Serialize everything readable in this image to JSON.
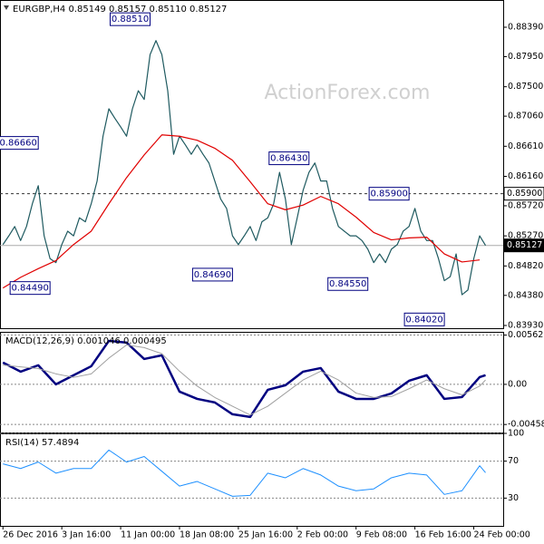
{
  "chart_data": [
    {
      "type": "line",
      "title": "EURGBP,H4  0.85149 0.85157 0.85110 0.85127",
      "watermark": "ActionForex.com",
      "xlim": [
        -0.5,
        85
      ],
      "ylim": [
        0.83889,
        0.88797
      ],
      "yticks": [
        {
          "value": 0.8839,
          "label": "0.88390"
        },
        {
          "value": 0.8795,
          "label": "0.87950"
        },
        {
          "value": 0.875,
          "label": "0.87500"
        },
        {
          "value": 0.8706,
          "label": "0.87060"
        },
        {
          "value": 0.8661,
          "label": "0.86610"
        },
        {
          "value": 0.8616,
          "label": "0.86160"
        },
        {
          "value": 0.8572,
          "label": "0.85720"
        },
        {
          "value": 0.8527,
          "label": "0.85270"
        },
        {
          "value": 0.8482,
          "label": "0.84820"
        },
        {
          "value": 0.8438,
          "label": "0.84380"
        },
        {
          "value": 0.8393,
          "label": "0.83930"
        }
      ],
      "grid": false,
      "series": [
        {
          "name": "EURGBP",
          "color": "#1f5a60",
          "line_width": 1.2,
          "x": [
            0,
            1,
            2,
            3,
            4,
            5,
            6,
            7,
            8,
            9,
            10,
            11,
            12,
            13,
            14,
            15,
            16,
            17,
            18,
            19,
            20,
            21,
            22,
            23,
            24,
            25,
            26,
            27,
            28,
            29,
            30,
            31,
            32,
            33,
            34,
            35,
            36,
            37,
            38,
            39,
            40,
            41,
            42,
            43,
            44,
            45,
            46,
            47,
            48,
            49,
            50,
            51,
            52,
            53,
            54,
            55,
            56,
            57,
            58,
            59,
            60,
            61,
            62,
            63,
            64,
            65,
            66,
            67,
            68,
            69,
            70,
            71,
            72,
            73,
            74,
            75,
            76,
            77,
            78,
            79,
            80,
            81,
            82
          ],
          "values": [
            0.8514,
            0.8527,
            0.8541,
            0.852,
            0.8541,
            0.8575,
            0.8602,
            0.8527,
            0.8493,
            0.8487,
            0.8514,
            0.8534,
            0.8527,
            0.8554,
            0.8548,
            0.8575,
            0.8609,
            0.8676,
            0.8717,
            0.8703,
            0.869,
            0.8676,
            0.8717,
            0.8744,
            0.8731,
            0.8798,
            0.8819,
            0.8798,
            0.8744,
            0.8649,
            0.8676,
            0.8663,
            0.8649,
            0.8663,
            0.8649,
            0.8636,
            0.8609,
            0.8582,
            0.8568,
            0.8527,
            0.8514,
            0.8527,
            0.8541,
            0.852,
            0.8548,
            0.8554,
            0.8575,
            0.8622,
            0.8582,
            0.8514,
            0.8554,
            0.8595,
            0.8622,
            0.8636,
            0.8609,
            0.8609,
            0.8568,
            0.8541,
            0.8534,
            0.8527,
            0.8527,
            0.852,
            0.8507,
            0.8487,
            0.85,
            0.8487,
            0.8507,
            0.8514,
            0.8534,
            0.8541,
            0.8568,
            0.8534,
            0.852,
            0.852,
            0.8493,
            0.846,
            0.8466,
            0.85,
            0.8439,
            0.8446,
            0.8493,
            0.8527,
            0.85127
          ]
        },
        {
          "name": "MA",
          "color": "#e00000",
          "line_width": 1.2,
          "x": [
            0,
            3,
            6,
            9,
            12,
            15,
            18,
            21,
            24,
            27,
            30,
            33,
            36,
            39,
            42,
            45,
            48,
            51,
            54,
            57,
            60,
            63,
            66,
            69,
            72,
            75,
            78,
            81
          ],
          "values": [
            0.8449,
            0.8465,
            0.8478,
            0.849,
            0.8514,
            0.8534,
            0.8575,
            0.8614,
            0.8648,
            0.8678,
            0.8676,
            0.867,
            0.8658,
            0.864,
            0.8608,
            0.8575,
            0.8566,
            0.8573,
            0.8586,
            0.8575,
            0.8555,
            0.8532,
            0.8521,
            0.8524,
            0.8525,
            0.85,
            0.8488,
            0.8491
          ]
        }
      ],
      "annotations": [
        {
          "x": 25,
          "value": 0.8851,
          "label": "0.88510"
        },
        {
          "x": 6,
          "value": 0.8666,
          "label": "0.86660"
        },
        {
          "x": 8,
          "value": 0.8449,
          "label": "0.84490"
        },
        {
          "x": 39,
          "value": 0.8469,
          "label": "0.84690"
        },
        {
          "x": 52,
          "value": 0.8643,
          "label": "0.86430"
        },
        {
          "x": 69,
          "value": 0.859,
          "label": "0.85900"
        },
        {
          "x": 62,
          "value": 0.8455,
          "label": "0.84550"
        },
        {
          "x": 75,
          "value": 0.8402,
          "label": "0.84020"
        }
      ],
      "levels": [
        {
          "value": 0.859,
          "label": "0.85900",
          "color": "#333333",
          "dashed": true,
          "box": "light"
        },
        {
          "value": 0.85127,
          "label": "0.85127",
          "color": "#aaaaaa",
          "dashed": false,
          "box": "dark"
        }
      ]
    },
    {
      "type": "line",
      "title": "MACD(12,26,9) 0.001046 0.000495",
      "xlim": [
        -0.5,
        85
      ],
      "ylim": [
        -0.0055,
        0.006
      ],
      "yticks": [
        0.005627,
        {
          "value": 0,
          "label": "0.00"
        },
        -0.004586
      ],
      "grid": true,
      "series": [
        {
          "name": "MACD",
          "color": "#000080",
          "line_width": 2.5,
          "x": [
            0,
            3,
            6,
            9,
            12,
            15,
            18,
            21,
            24,
            27,
            30,
            33,
            36,
            39,
            42,
            45,
            48,
            51,
            54,
            57,
            60,
            63,
            66,
            69,
            72,
            75,
            78,
            81,
            82
          ],
          "values": [
            0.00249,
            0.00145,
            0.00218,
            0,
            0.00104,
            0.00207,
            0.00497,
            0.00477,
            0.0029,
            0.00332,
            -0.00083,
            -0.00166,
            -0.00207,
            -0.00342,
            -0.00373,
            -0.00062,
            -0.0001,
            0.00145,
            0.00186,
            -0.00083,
            -0.00166,
            -0.00166,
            -0.00104,
            0.00041,
            0.00104,
            -0.00166,
            -0.00145,
            0.00083,
            0.001046
          ]
        },
        {
          "name": "Signal",
          "color": "#a0a0a0",
          "line_width": 1,
          "x": [
            0,
            3,
            6,
            9,
            12,
            15,
            18,
            21,
            24,
            27,
            30,
            33,
            36,
            39,
            42,
            45,
            48,
            51,
            54,
            57,
            60,
            63,
            66,
            69,
            72,
            75,
            78,
            81,
            82
          ],
          "values": [
            0.0022,
            0.002,
            0.0018,
            0.0012,
            0.0008,
            0.0012,
            0.003,
            0.0045,
            0.0042,
            0.0035,
            0.0015,
            -0.0002,
            -0.0015,
            -0.0025,
            -0.0035,
            -0.0025,
            -0.001,
            0.0005,
            0.0015,
            0.0005,
            -0.001,
            -0.0015,
            -0.0014,
            -0.0005,
            0.0005,
            -0.0005,
            -0.0012,
            -0.0002,
            0.000495
          ]
        }
      ]
    },
    {
      "type": "line",
      "title": "RSI(14) 57.4894",
      "xlim": [
        -0.5,
        85
      ],
      "ylim": [
        0,
        100
      ],
      "yticks": [
        100,
        70,
        30
      ],
      "grid": true,
      "xticks": [
        {
          "value": 0,
          "label": "26 Dec 2016"
        },
        {
          "value": 10,
          "label": "3 Jan 16:00"
        },
        {
          "value": 20,
          "label": "11 Jan 00:00"
        },
        {
          "value": 30,
          "label": "18 Jan 08:00"
        },
        {
          "value": 40,
          "label": "25 Jan 16:00"
        },
        {
          "value": 50,
          "label": "2 Feb 00:00"
        },
        {
          "value": 60,
          "label": "9 Feb 08:00"
        },
        {
          "value": 70,
          "label": "16 Feb 16:00"
        },
        {
          "value": 80,
          "label": "24 Feb 00:00"
        }
      ],
      "series": [
        {
          "name": "RSI",
          "color": "#1e90ff",
          "line_width": 1,
          "x": [
            0,
            3,
            6,
            9,
            12,
            15,
            18,
            21,
            24,
            27,
            30,
            33,
            36,
            39,
            42,
            45,
            48,
            51,
            54,
            57,
            60,
            63,
            66,
            69,
            72,
            75,
            78,
            81,
            82
          ],
          "values": [
            67,
            62,
            69,
            57,
            62,
            62,
            82,
            69,
            75,
            59,
            43,
            48,
            40,
            32,
            33,
            57,
            52,
            62,
            55,
            43,
            38,
            40,
            52,
            57,
            55,
            34,
            38,
            65,
            57.4894
          ]
        }
      ]
    }
  ]
}
